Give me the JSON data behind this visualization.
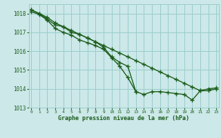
{
  "xlabel": "Graphe pression niveau de la mer (hPa)",
  "hours": [
    0,
    1,
    2,
    3,
    4,
    5,
    6,
    7,
    8,
    9,
    10,
    11,
    12,
    13,
    14,
    15,
    16,
    17,
    18,
    19,
    20,
    21,
    22,
    23
  ],
  "line1": [
    1018.2,
    1018.0,
    1017.8,
    1017.5,
    1017.3,
    1017.1,
    1016.9,
    1016.7,
    1016.5,
    1016.3,
    1016.1,
    1015.9,
    1015.7,
    1015.5,
    1015.3,
    1015.1,
    1014.9,
    1014.7,
    1014.5,
    1014.3,
    1014.1,
    1013.9,
    1013.9,
    1014.0
  ],
  "line2": [
    1018.2,
    1018.0,
    1017.7,
    1017.4,
    1017.3,
    1017.0,
    1016.9,
    1016.7,
    1016.5,
    1016.2,
    1015.7,
    1015.4,
    1015.2,
    1013.85,
    1013.7,
    1013.85,
    1013.85,
    1013.8,
    1013.75,
    1013.7,
    1013.4,
    1013.9,
    1014.0,
    1014.05
  ],
  "line3": [
    1018.1,
    1017.95,
    1017.65,
    1017.2,
    1017.0,
    1016.85,
    1016.6,
    1016.45,
    1016.3,
    1016.1,
    1015.65,
    1015.2,
    1014.6,
    1013.85,
    null,
    null,
    null,
    null,
    null,
    null,
    null,
    null,
    null,
    null
  ],
  "line_color": "#1a5c1a",
  "bg_color": "#cce8e8",
  "grid_color": "#99cccc",
  "tick_color": "#1a5c1a",
  "ylim": [
    1013.0,
    1018.5
  ],
  "yticks": [
    1013,
    1014,
    1015,
    1016,
    1017,
    1018
  ],
  "marker": "+",
  "linewidth": 1.0,
  "markersize": 4
}
